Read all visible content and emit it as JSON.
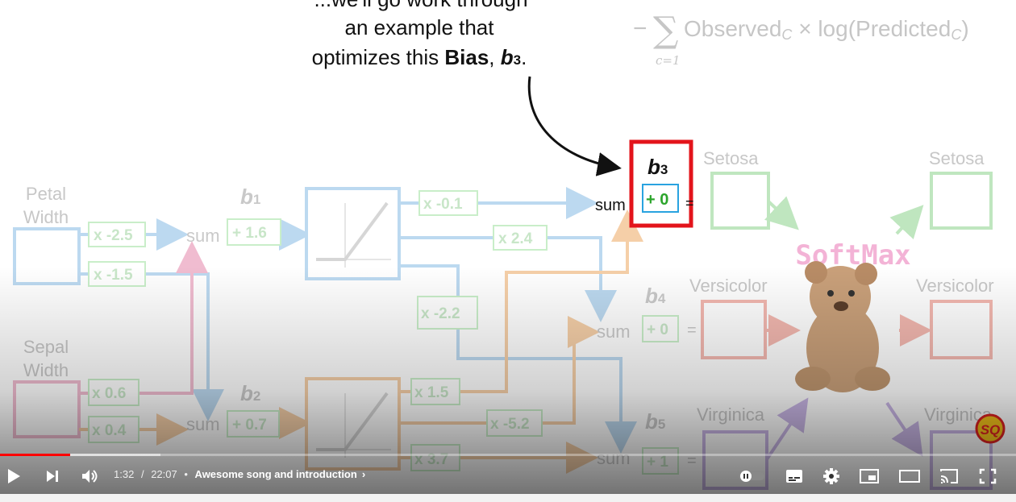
{
  "video": {
    "formula": {
      "text": "Observed",
      "sub": "C",
      "times": "×",
      "log_text": "log(Predicted",
      "log_sub": "C",
      "close": ")",
      "sum_index": "c=1"
    },
    "callout": {
      "line1": "...we'll go work through",
      "line2": "an example that",
      "line3_prefix": "optimizes this ",
      "line3_bold": "Bias",
      "line3_sep": ", ",
      "line3_var": "b",
      "line3_var_sub": "3",
      "line3_end": "."
    },
    "inputs": {
      "petal": [
        "Petal",
        "Width"
      ],
      "sepal": [
        "Sepal",
        "Width"
      ]
    },
    "weights": {
      "w1": "x -2.5",
      "w2": "x -1.5",
      "w3": "x 0.6",
      "w4": "x 0.4",
      "w5": "x -0.1",
      "w6": "x 2.4",
      "w7": "x -2.2",
      "w8": "x 1.5",
      "w9": "x -5.2",
      "w10": "x 3.7"
    },
    "biases": {
      "b1": "b",
      "b1_sub": "1",
      "b1_val": "+ 1.6",
      "b2": "b",
      "b2_sub": "2",
      "b2_val": "+ 0.7",
      "b3": "b",
      "b3_sub": "3",
      "b3_val": "+ 0",
      "b4": "b",
      "b4_sub": "4",
      "b4_val": "+ 0",
      "b5": "b",
      "b5_sub": "5",
      "b5_val": "+ 1"
    },
    "sum_label": "sum",
    "equals": "=",
    "softmax": "SoftMax",
    "outputs": {
      "left": [
        "Setosa",
        "Versicolor",
        "Virginica"
      ],
      "right": [
        "Setosa",
        "Versicolor",
        "Virginica"
      ]
    },
    "logo": "SQ"
  },
  "player": {
    "time_current": "1:32",
    "time_sep": "/",
    "time_total": "22:07",
    "dot": "•",
    "chapter": "Awesome song and introduction",
    "chevron": "›",
    "progress_played": 0.0693,
    "progress_loaded": 0.158
  }
}
